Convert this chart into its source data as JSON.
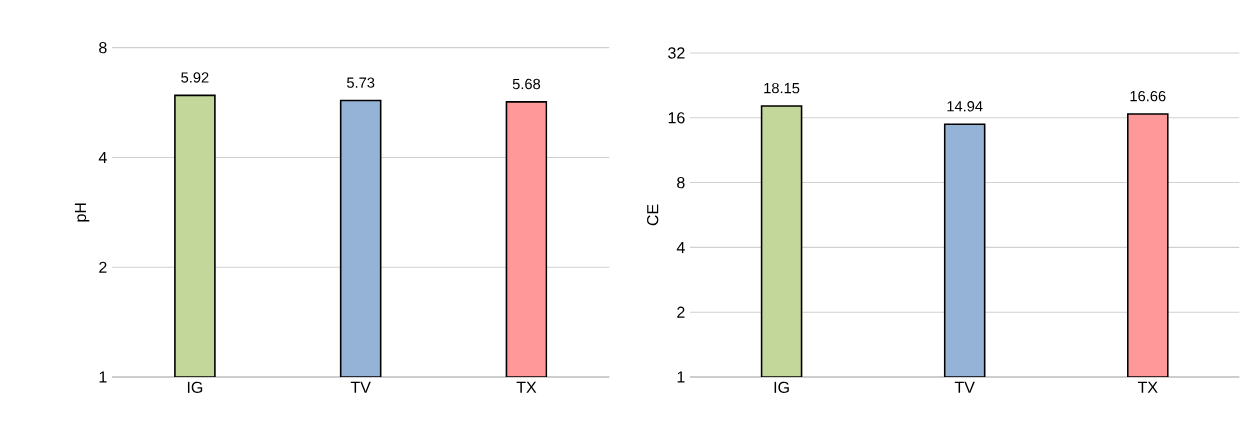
{
  "chart_data": [
    {
      "type": "bar",
      "ylabel": "pH",
      "categories": [
        "IG",
        "TV",
        "TX"
      ],
      "values": [
        5.92,
        5.73,
        5.68
      ],
      "colors": [
        "#c4d79b",
        "#95b3d7",
        "#ff9999"
      ],
      "log": "y",
      "ylim": [
        1,
        8
      ],
      "yticks": [
        1,
        2,
        4,
        8
      ],
      "grid": "y",
      "data_labels": true
    },
    {
      "type": "bar",
      "ylabel": "CE",
      "categories": [
        "IG",
        "TV",
        "TX"
      ],
      "values": [
        18.15,
        14.94,
        16.66
      ],
      "colors": [
        "#c4d79b",
        "#95b3d7",
        "#ff9999"
      ],
      "log": "y",
      "ylim": [
        1,
        32
      ],
      "yticks": [
        1,
        2,
        4,
        8,
        16,
        32
      ],
      "grid": "y",
      "data_labels": true
    }
  ]
}
